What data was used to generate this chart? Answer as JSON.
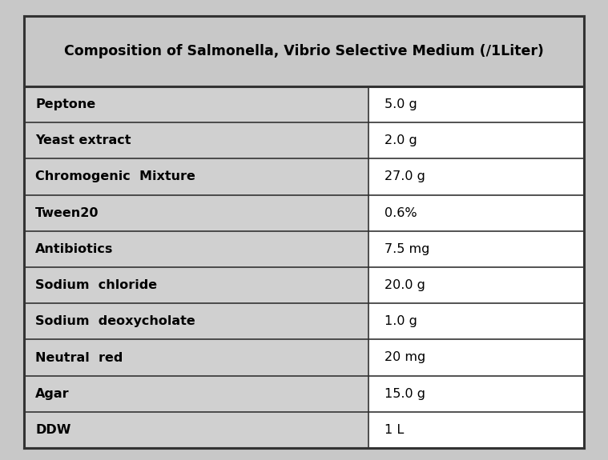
{
  "title": "Composition of Salmonella, Vibrio Selective Medium (/1Liter)",
  "rows": [
    [
      "Peptone",
      "5.0 g"
    ],
    [
      "Yeast extract",
      "2.0 g"
    ],
    [
      "Chromogenic  Mixture",
      "27.0 g"
    ],
    [
      "Tween20",
      "0.6%"
    ],
    [
      "Antibiotics",
      "7.5 mg"
    ],
    [
      "Sodium  chloride",
      "20.0 g"
    ],
    [
      "Sodium  deoxycholate",
      "1.0 g"
    ],
    [
      "Neutral  red",
      "20 mg"
    ],
    [
      "Agar",
      "15.0 g"
    ],
    [
      "DDW",
      "1 L"
    ]
  ],
  "col_split": 0.615,
  "outer_bg": "#c8c8c8",
  "header_bg": "#c8c8c8",
  "row_bg": "#d0d0d0",
  "value_bg": "#ffffff",
  "last_label_bg": "#d0d0d0",
  "last_value_bg": "#ffffff",
  "border_color": "#333333",
  "title_fontsize": 12.5,
  "row_fontsize": 11.5
}
